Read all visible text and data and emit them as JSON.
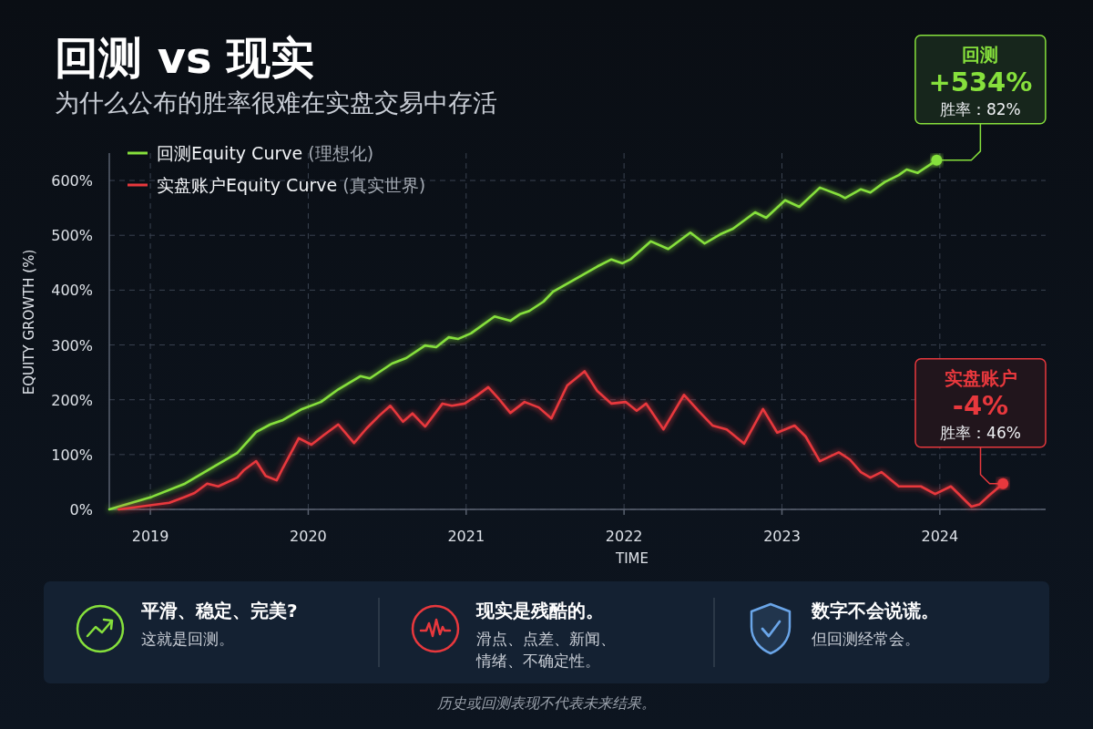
{
  "chart_data": [
    {
      "type": "line",
      "title": "回测 vs 现实",
      "subtitle": "为什么公布的胜率很难在实盘交易中存活",
      "xlabel": "TIME",
      "ylabel": "EQUITY GROWTH (%)",
      "xlim": [
        2018.74,
        2024.67
      ],
      "xticks": [
        2019,
        2020,
        2021,
        2022,
        2023,
        2024
      ],
      "ylim": [
        0,
        650
      ],
      "yticks": [
        {
          "value": 0,
          "label": "0%"
        },
        {
          "value": 100,
          "label": "100%"
        },
        {
          "value": 200,
          "label": "200%"
        },
        {
          "value": 300,
          "label": "300%"
        },
        {
          "value": 400,
          "label": "400%"
        },
        {
          "value": 500,
          "label": "500%"
        },
        {
          "value": 600,
          "label": "600%"
        }
      ],
      "grid": true,
      "legend": "top left",
      "series": [
        {
          "name": "回测Equity Curve (理想化)",
          "color": "#86e03c",
          "x": [
            2018.74,
            2019.01,
            2019.22,
            2019.36,
            2019.55,
            2019.67,
            2019.76,
            2019.84,
            2019.96,
            2020.08,
            2020.19,
            2020.33,
            2020.39,
            2020.53,
            2020.62,
            2020.74,
            2020.81,
            2020.89,
            2020.95,
            2021.03,
            2021.18,
            2021.28,
            2021.34,
            2021.4,
            2021.49,
            2021.55,
            2021.69,
            2021.83,
            2021.92,
            2021.99,
            2022.04,
            2022.17,
            2022.28,
            2022.42,
            2022.51,
            2022.61,
            2022.69,
            2022.83,
            2022.9,
            2023.02,
            2023.11,
            2023.24,
            2023.36,
            2023.4,
            2023.5,
            2023.56,
            2023.65,
            2023.74,
            2023.79,
            2023.86,
            2023.98
          ],
          "values": [
            0,
            23,
            47,
            71,
            103,
            141,
            155,
            163,
            183,
            196,
            219,
            243,
            239,
            266,
            276,
            299,
            296,
            314,
            311,
            321,
            352,
            344,
            356,
            362,
            379,
            397,
            420,
            443,
            456,
            449,
            456,
            489,
            475,
            505,
            485,
            502,
            512,
            542,
            532,
            564,
            552,
            587,
            574,
            568,
            584,
            578,
            597,
            610,
            620,
            614,
            637
          ]
        },
        {
          "name": "实盘账户Equity Curve (真实世界)",
          "color": "#e8383d",
          "x": [
            2018.8,
            2019.01,
            2019.12,
            2019.22,
            2019.28,
            2019.36,
            2019.43,
            2019.55,
            2019.59,
            2019.67,
            2019.73,
            2019.8,
            2019.84,
            2019.94,
            2020.02,
            2020.1,
            2020.19,
            2020.29,
            2020.37,
            2020.45,
            2020.52,
            2020.6,
            2020.66,
            2020.74,
            2020.85,
            2020.91,
            2020.99,
            2021.07,
            2021.14,
            2021.2,
            2021.28,
            2021.37,
            2021.46,
            2021.54,
            2021.64,
            2021.75,
            2021.83,
            2021.92,
            2022.01,
            2022.08,
            2022.14,
            2022.25,
            2022.38,
            2022.47,
            2022.56,
            2022.65,
            2022.76,
            2022.88,
            2022.97,
            2023.08,
            2023.15,
            2023.24,
            2023.36,
            2023.43,
            2023.5,
            2023.56,
            2023.63,
            2023.74,
            2023.88,
            2023.97,
            2024.07,
            2024.2,
            2024.25,
            2024.31,
            2024.4
          ],
          "values": [
            0,
            8,
            12,
            23,
            30,
            47,
            42,
            58,
            71,
            88,
            61,
            53,
            76,
            130,
            118,
            136,
            155,
            121,
            148,
            171,
            189,
            160,
            175,
            151,
            193,
            189,
            193,
            208,
            223,
            204,
            176,
            196,
            186,
            166,
            226,
            252,
            216,
            193,
            196,
            180,
            193,
            146,
            209,
            180,
            153,
            146,
            120,
            183,
            140,
            153,
            133,
            88,
            104,
            91,
            68,
            58,
            68,
            42,
            42,
            28,
            42,
            5,
            9,
            25,
            47
          ]
        }
      ],
      "annotations": [
        {
          "text": "回测\n+534%\n胜率：82%",
          "x": 2023.98,
          "y": 637
        },
        {
          "text": "实盘账户\n-4%\n胜率：46%",
          "x": 2024.4,
          "y": 47
        },
        "历史或回测表现不代表未来结果。"
      ]
    },
    {
      "type": "other",
      "annotations": [
        "平滑、稳定、完美?",
        "这就是回测。",
        "现实是残酷的。",
        "滑点、点差、新闻、情绪、不确定性。",
        "数字不会说谎。",
        "但回测经常会。"
      ]
    }
  ]
}
